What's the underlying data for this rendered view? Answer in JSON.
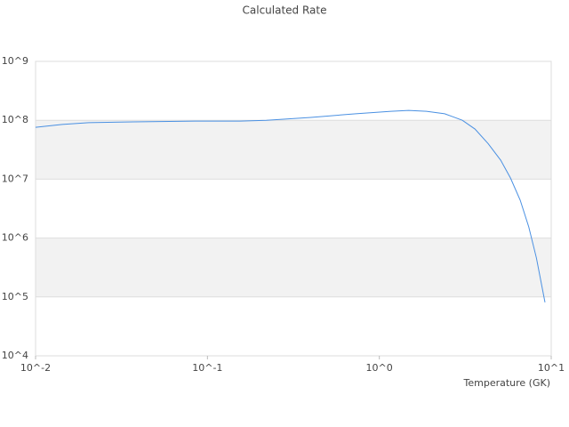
{
  "chart_data": {
    "type": "line",
    "title": "Calculated Rate",
    "x_label": "Temperature (GK)",
    "log_x": true,
    "log_y": true,
    "grid": true,
    "xlim": [
      0.01,
      10
    ],
    "ylim": [
      10000,
      1000000000
    ],
    "xticks": [
      {
        "value": 0.01,
        "label": "10^-2"
      },
      {
        "value": 0.1,
        "label": "10^-1"
      },
      {
        "value": 1,
        "label": "10^0"
      },
      {
        "value": 10,
        "label": "10^1"
      }
    ],
    "yticks": [
      {
        "value": 10000,
        "label": "10^4"
      },
      {
        "value": 100000,
        "label": "10^5"
      },
      {
        "value": 1000000,
        "label": "10^6"
      },
      {
        "value": 10000000,
        "label": "10^7"
      },
      {
        "value": 100000000,
        "label": "10^8"
      },
      {
        "value": 1000000000,
        "label": "10^9"
      }
    ],
    "series": [
      {
        "color": "#4a90e2",
        "x": [
          0.01,
          0.0143,
          0.0204,
          0.037,
          0.085,
          0.155,
          0.22,
          0.4,
          0.73,
          1.17,
          1.48,
          1.88,
          2.4,
          3.04,
          3.6,
          4.3,
          5.08,
          5.8,
          6.6,
          7.4,
          8.2,
          9.2
        ],
        "values": [
          76000000,
          85000000,
          91000000,
          94000000,
          97000000,
          97000000,
          100000000,
          112000000,
          129000000,
          142000000,
          147000000,
          142000000,
          129000000,
          100000000,
          71000000,
          40000000,
          21000000,
          10400000,
          4400000,
          1550000,
          460000,
          81000
        ]
      }
    ]
  }
}
